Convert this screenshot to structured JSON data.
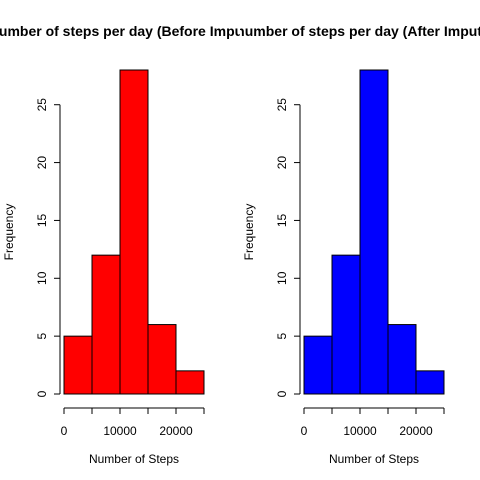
{
  "chart_data": [
    {
      "type": "bar",
      "title": "Total number of steps per day (Before Imputation)",
      "xlabel": "Number of Steps",
      "ylabel": "Frequency",
      "bin_edges": [
        0,
        5000,
        10000,
        15000,
        20000,
        25000
      ],
      "values": [
        5,
        12,
        28,
        6,
        2
      ],
      "color": "#ff0000",
      "xlim": [
        0,
        25000
      ],
      "ylim": [
        0,
        28
      ],
      "x_ticks": [
        0,
        10000,
        20000
      ],
      "y_ticks": [
        0,
        5,
        10,
        15,
        20,
        25
      ],
      "grid": false
    },
    {
      "type": "bar",
      "title": "Total number of steps per day (After Imputation)",
      "xlabel": "Number of Steps",
      "ylabel": "Frequency",
      "bin_edges": [
        0,
        5000,
        10000,
        15000,
        20000,
        25000
      ],
      "values": [
        5,
        12,
        28,
        6,
        2
      ],
      "color": "#0000ff",
      "xlim": [
        0,
        25000
      ],
      "ylim": [
        0,
        28
      ],
      "x_ticks": [
        0,
        10000,
        20000
      ],
      "y_ticks": [
        0,
        5,
        10,
        15,
        20,
        25
      ],
      "grid": false
    }
  ]
}
